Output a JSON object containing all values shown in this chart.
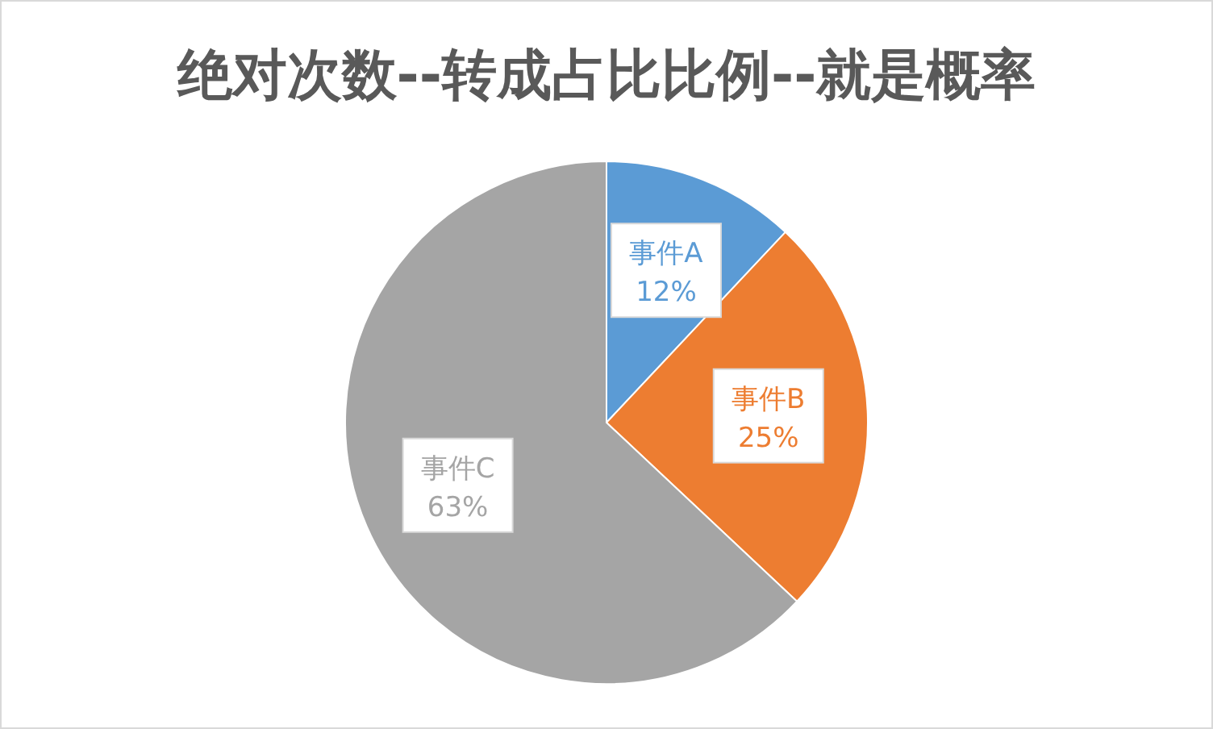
{
  "chart_data": {
    "type": "pie",
    "title": "绝对次数--转成占比比例--就是概率",
    "categories": [
      "事件A",
      "事件B",
      "事件C"
    ],
    "values": [
      12,
      25,
      63
    ],
    "colors": [
      "#5b9bd5",
      "#ed7d31",
      "#a5a5a5"
    ],
    "value_labels": [
      "12%",
      "25%",
      "63%"
    ]
  }
}
